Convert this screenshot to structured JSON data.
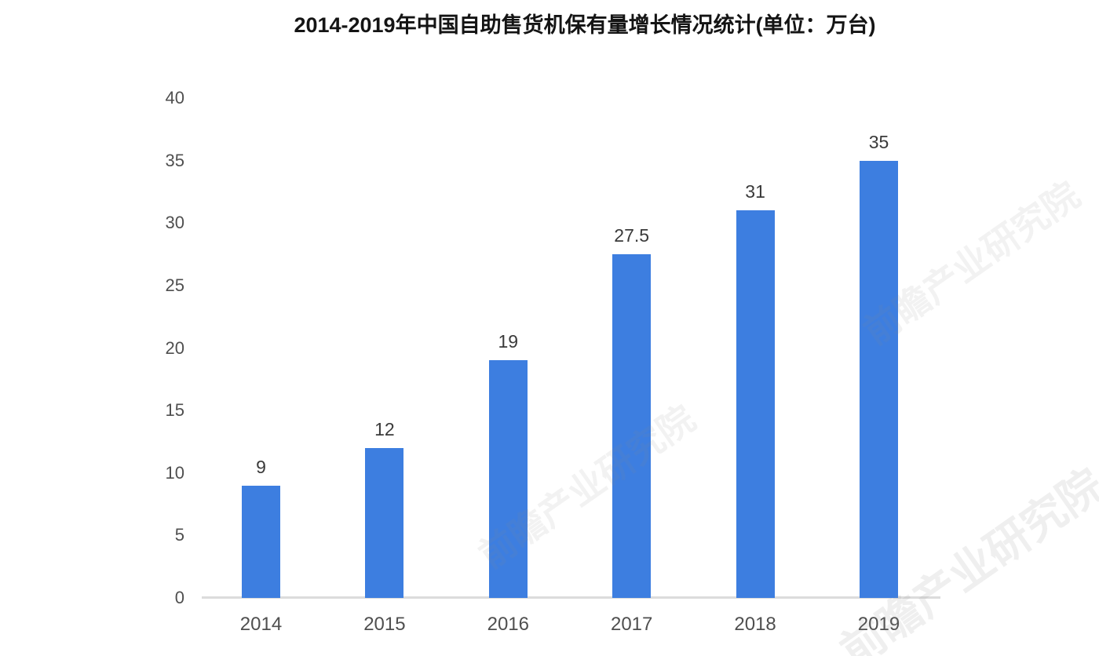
{
  "page": {
    "background": "#ffffff"
  },
  "chart_data": {
    "type": "bar",
    "title": "2014-2019年中国自助售货机保有量增长情况统计(单位：万台)",
    "categories": [
      "2014",
      "2015",
      "2016",
      "2017",
      "2018",
      "2019"
    ],
    "values": [
      9,
      12,
      19,
      27.5,
      31,
      35
    ],
    "data_labels": [
      "9",
      "12",
      "19",
      "27.5",
      "31",
      "35"
    ],
    "yticks": [
      0,
      5,
      10,
      15,
      20,
      25,
      30,
      35,
      40
    ],
    "ylim": [
      0,
      40
    ],
    "xlabel": "",
    "ylabel": "",
    "grid": false,
    "legend_position": "none",
    "bar_color": "#3d7ee0",
    "value_label_color": "#3a3a3a",
    "tick_label_color": "#4f4f4f",
    "axis_line_color": "#dcdcdc",
    "title_color": "#141414"
  },
  "watermark": {
    "text": "前瞻产业研究院"
  }
}
